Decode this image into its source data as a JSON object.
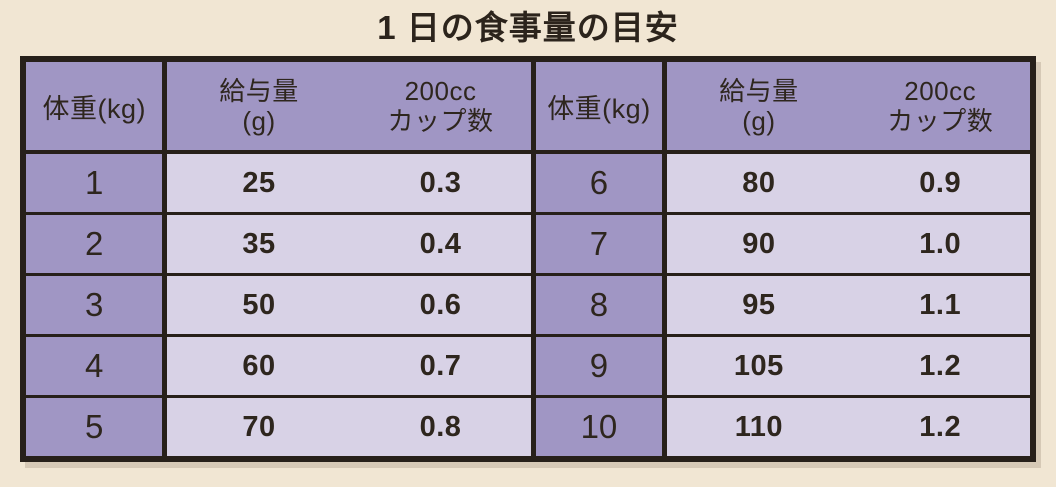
{
  "title": "1 日の食事量の目安",
  "table": {
    "header": {
      "weight": "体重(kg)",
      "amount_top": "給与量",
      "amount_bottom": "(g)",
      "cups_top": "200cc",
      "cups_bottom": "カップ数"
    },
    "left_rows": [
      {
        "weight": "1",
        "amount": "25",
        "cups": "0.3"
      },
      {
        "weight": "2",
        "amount": "35",
        "cups": "0.4"
      },
      {
        "weight": "3",
        "amount": "50",
        "cups": "0.6"
      },
      {
        "weight": "4",
        "amount": "60",
        "cups": "0.7"
      },
      {
        "weight": "5",
        "amount": "70",
        "cups": "0.8"
      }
    ],
    "right_rows": [
      {
        "weight": "6",
        "amount": "80",
        "cups": "0.9"
      },
      {
        "weight": "7",
        "amount": "90",
        "cups": "1.0"
      },
      {
        "weight": "8",
        "amount": "95",
        "cups": "1.1"
      },
      {
        "weight": "9",
        "amount": "105",
        "cups": "1.2"
      },
      {
        "weight": "10",
        "amount": "110",
        "cups": "1.2"
      }
    ]
  },
  "colors": {
    "background": "#f1e6d3",
    "header_purple": "#a096c4",
    "cell_lavender": "#d8d2e6",
    "border_dark": "#27201a",
    "text_dark": "#2e261e"
  },
  "chart_data": {
    "type": "table",
    "title": "1 日の食事量の目安",
    "columns": [
      "体重(kg)",
      "給与量(g)",
      "200ccカップ数"
    ],
    "rows": [
      [
        1,
        25,
        0.3
      ],
      [
        2,
        35,
        0.4
      ],
      [
        3,
        50,
        0.6
      ],
      [
        4,
        60,
        0.7
      ],
      [
        5,
        70,
        0.8
      ],
      [
        6,
        80,
        0.9
      ],
      [
        7,
        90,
        1.0
      ],
      [
        8,
        95,
        1.1
      ],
      [
        9,
        105,
        1.2
      ],
      [
        10,
        110,
        1.2
      ]
    ],
    "layout_note": "Single table split into two side-by-side halves: weights 1-5 in the left half, weights 6-10 in the right half; each half repeats the same three column headers."
  }
}
